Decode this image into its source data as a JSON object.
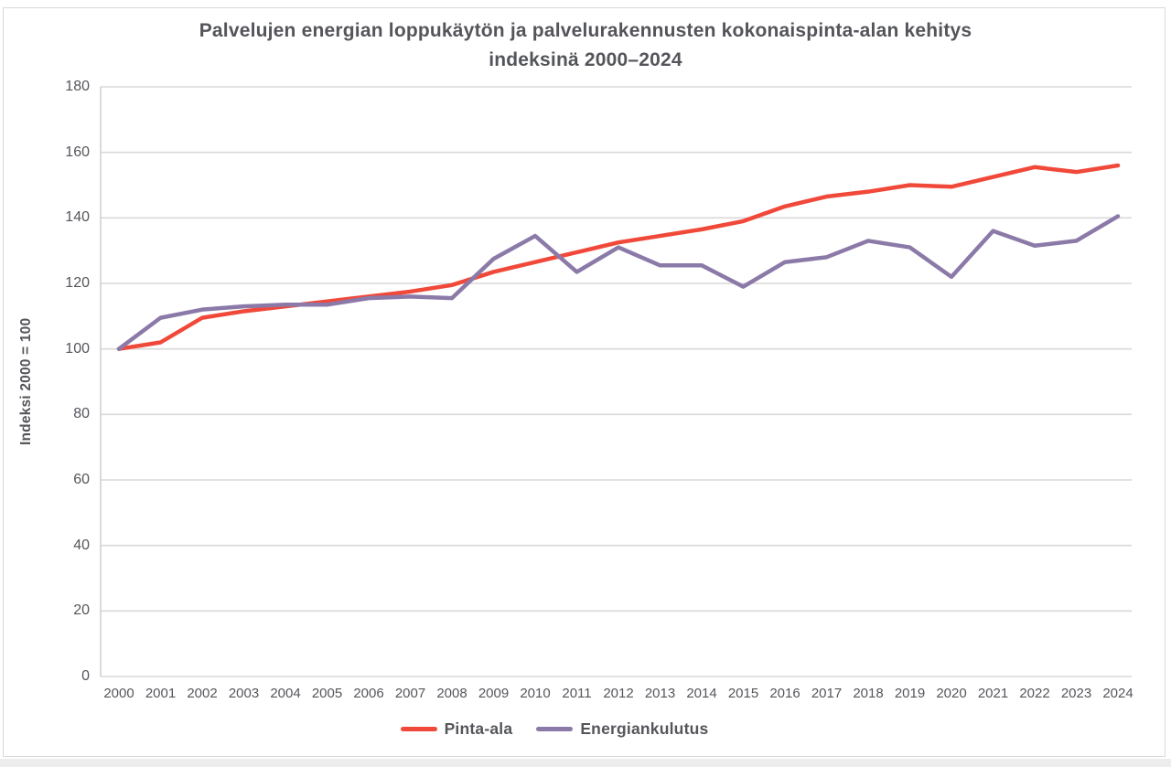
{
  "chart_data": {
    "type": "line",
    "title": "Palvelujen energian loppukäytön ja palvelurakennusten kokonaispinta-alan kehitys indeksinä 2000–2024",
    "title_line1": "Palvelujen energian loppukäytön ja palvelurakennusten kokonaispinta-alan kehitys",
    "title_line2": "indeksinä 2000–2024",
    "ylabel": "Indeksi 2000 = 100",
    "xlabel": "",
    "years": [
      2000,
      2001,
      2002,
      2003,
      2004,
      2005,
      2006,
      2007,
      2008,
      2009,
      2010,
      2011,
      2012,
      2013,
      2014,
      2015,
      2016,
      2017,
      2018,
      2019,
      2020,
      2021,
      2022,
      2023,
      2024
    ],
    "ylim": [
      0,
      180
    ],
    "ytick_step": 20,
    "grid": true,
    "legend_position": "bottom",
    "series": [
      {
        "name": "Pinta-ala",
        "color": "#f0493a",
        "values": [
          100,
          102,
          109.5,
          111.5,
          113,
          114.5,
          116,
          117.5,
          119.5,
          123.5,
          126.5,
          129.5,
          132.5,
          134.5,
          136.5,
          139,
          143.5,
          146.5,
          148,
          150,
          149.5,
          152.5,
          155.5,
          154,
          156
        ]
      },
      {
        "name": "Energiankulutus",
        "color": "#8b7aa8",
        "values": [
          100,
          109.5,
          112,
          113,
          113.5,
          113.5,
          115.5,
          116,
          115.5,
          127.5,
          134.5,
          123.5,
          131,
          125.5,
          125.5,
          119,
          126.5,
          128,
          133,
          131,
          122,
          136,
          131.5,
          133,
          140.5
        ]
      }
    ],
    "colors": {
      "gridline": "#d9d9d9",
      "axis_line": "#d0d1d2",
      "text": "#55565b"
    }
  }
}
